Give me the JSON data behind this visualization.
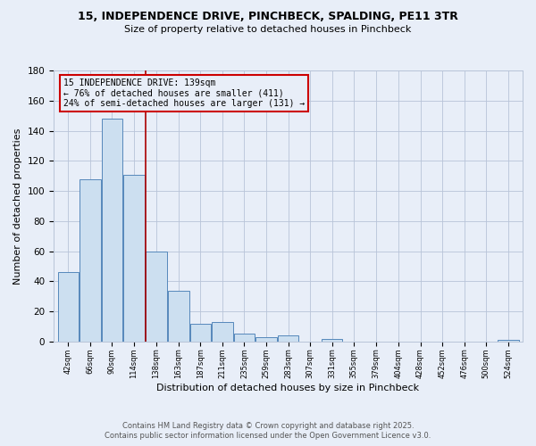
{
  "title_line1": "15, INDEPENDENCE DRIVE, PINCHBECK, SPALDING, PE11 3TR",
  "title_line2": "Size of property relative to detached houses in Pinchbeck",
  "xlabel": "Distribution of detached houses by size in Pinchbeck",
  "ylabel": "Number of detached properties",
  "bar_left_edges": [
    42,
    66,
    90,
    114,
    138,
    163,
    187,
    211,
    235,
    259,
    283,
    307,
    331,
    355,
    379,
    404,
    428,
    452,
    476,
    500,
    524
  ],
  "bar_widths": [
    24,
    24,
    24,
    24,
    25,
    24,
    24,
    24,
    24,
    24,
    24,
    24,
    24,
    24,
    25,
    24,
    24,
    24,
    24,
    24,
    24
  ],
  "bar_heights": [
    46,
    108,
    148,
    111,
    60,
    34,
    12,
    13,
    5,
    3,
    4,
    0,
    2,
    0,
    0,
    0,
    0,
    0,
    0,
    0,
    1
  ],
  "bar_color": "#ccdff0",
  "bar_edge_color": "#6aа0c8",
  "property_line_x": 139,
  "property_line_color": "#aa0000",
  "annotation_text": "15 INDEPENDENCE DRIVE: 139sqm\n← 76% of detached houses are smaller (411)\n24% of semi-detached houses are larger (131) →",
  "annotation_box_color": "#cc0000",
  "annotation_text_color": "#000000",
  "ylim": [
    0,
    180
  ],
  "yticks": [
    0,
    20,
    40,
    60,
    80,
    100,
    120,
    140,
    160,
    180
  ],
  "tick_labels": [
    "42sqm",
    "66sqm",
    "90sqm",
    "114sqm",
    "138sqm",
    "163sqm",
    "187sqm",
    "211sqm",
    "235sqm",
    "259sqm",
    "283sqm",
    "307sqm",
    "331sqm",
    "355sqm",
    "379sqm",
    "404sqm",
    "428sqm",
    "452sqm",
    "476sqm",
    "500sqm",
    "524sqm"
  ],
  "background_color": "#e8eef8",
  "grid_color": "#b8c4d8",
  "footer_line1": "Contains HM Land Registry data © Crown copyright and database right 2025.",
  "footer_line2": "Contains public sector information licensed under the Open Government Licence v3.0."
}
